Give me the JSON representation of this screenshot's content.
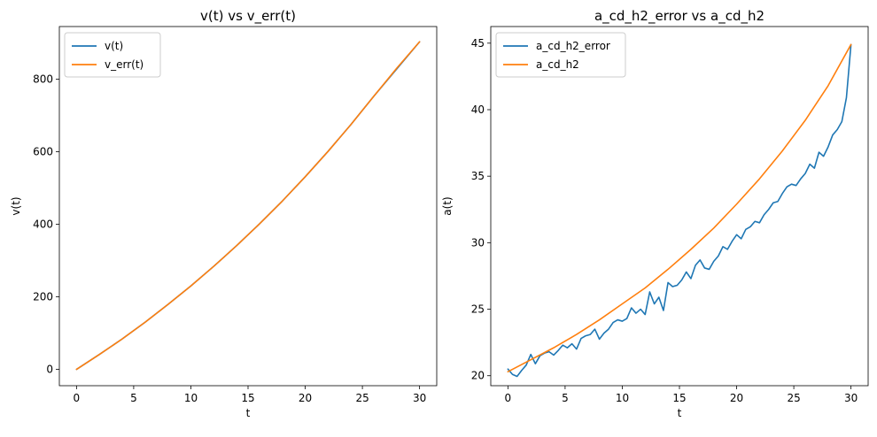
{
  "chart_data": [
    {
      "type": "line",
      "title": "v(t) vs v_err(t)",
      "xlabel": "t",
      "ylabel": "v(t)",
      "xlim": [
        -1.5,
        31.5
      ],
      "ylim": [
        -45,
        945
      ],
      "xticks": [
        0,
        5,
        10,
        15,
        20,
        25,
        30
      ],
      "yticks": [
        0,
        200,
        400,
        600,
        800
      ],
      "legend": "upper left",
      "series": [
        {
          "name": "v(t)",
          "color": "#1f77b4",
          "x": [
            0,
            2,
            4,
            6,
            8,
            10,
            12,
            14,
            16,
            18,
            20,
            22,
            24,
            26,
            28,
            30
          ],
          "y": [
            0,
            41,
            84,
            130,
            179,
            230,
            284,
            341,
            401,
            464,
            531,
            601,
            675,
            753,
            828,
            903
          ]
        },
        {
          "name": "v_err(t)",
          "color": "#ff7f0e",
          "x": [
            0,
            2,
            4,
            6,
            8,
            10,
            12,
            14,
            16,
            18,
            20,
            22,
            24,
            26,
            28,
            30
          ],
          "y": [
            0,
            41,
            84,
            130,
            179,
            230,
            284,
            341,
            401,
            464,
            531,
            601,
            675,
            753,
            830,
            903
          ]
        }
      ]
    },
    {
      "type": "line",
      "title": "a_cd_h2_error vs a_cd_h2",
      "xlabel": "t",
      "ylabel": "a(t)",
      "xlim": [
        -1.5,
        31.5
      ],
      "ylim": [
        19.25,
        46.25
      ],
      "xticks": [
        0,
        5,
        10,
        15,
        20,
        25,
        30
      ],
      "yticks": [
        20,
        25,
        30,
        35,
        40,
        45
      ],
      "legend": "upper left",
      "series": [
        {
          "name": "a_cd_h2_error",
          "color": "#1f77b4",
          "x": [
            0,
            0.4,
            0.8,
            1.2,
            1.6,
            2.0,
            2.4,
            2.8,
            3.2,
            3.6,
            4.0,
            4.4,
            4.8,
            5.2,
            5.6,
            6.0,
            6.4,
            6.8,
            7.2,
            7.6,
            8.0,
            8.4,
            8.8,
            9.2,
            9.6,
            10.0,
            10.4,
            10.8,
            11.2,
            11.6,
            12.0,
            12.4,
            12.8,
            13.2,
            13.6,
            14.0,
            14.4,
            14.8,
            15.2,
            15.6,
            16.0,
            16.4,
            16.8,
            17.2,
            17.6,
            18.0,
            18.4,
            18.8,
            19.2,
            19.6,
            20.0,
            20.4,
            20.8,
            21.2,
            21.6,
            22.0,
            22.4,
            22.8,
            23.2,
            23.6,
            24.0,
            24.4,
            24.8,
            25.2,
            25.6,
            26.0,
            26.4,
            26.8,
            27.2,
            27.6,
            28.0,
            28.4,
            28.8,
            29.2,
            29.6,
            30.0
          ],
          "y": [
            20.5,
            20.1,
            19.95,
            20.4,
            20.8,
            21.6,
            20.9,
            21.5,
            21.7,
            21.8,
            21.55,
            21.9,
            22.3,
            22.1,
            22.4,
            22.0,
            22.8,
            23.0,
            23.1,
            23.5,
            22.75,
            23.2,
            23.5,
            24.0,
            24.2,
            24.1,
            24.3,
            25.1,
            24.7,
            25.0,
            24.6,
            26.3,
            25.4,
            25.9,
            24.9,
            27.0,
            26.7,
            26.8,
            27.2,
            27.8,
            27.3,
            28.3,
            28.7,
            28.1,
            28.0,
            28.6,
            29.0,
            29.7,
            29.5,
            30.1,
            30.6,
            30.3,
            31.0,
            31.2,
            31.6,
            31.5,
            32.1,
            32.5,
            33.0,
            33.1,
            33.7,
            34.2,
            34.4,
            34.3,
            34.8,
            35.2,
            35.9,
            35.6,
            36.8,
            36.5,
            37.2,
            38.1,
            38.5,
            39.1,
            40.9,
            44.9
          ]
        },
        {
          "name": "a_cd_h2",
          "color": "#ff7f0e",
          "x": [
            0,
            2,
            4,
            6,
            8,
            10,
            12,
            14,
            16,
            18,
            20,
            22,
            24,
            26,
            28,
            30
          ],
          "y": [
            20.3,
            21.2,
            22.1,
            23.1,
            24.2,
            25.4,
            26.6,
            28.0,
            29.5,
            31.1,
            32.9,
            34.8,
            36.9,
            39.2,
            41.8,
            44.9
          ]
        }
      ]
    }
  ]
}
